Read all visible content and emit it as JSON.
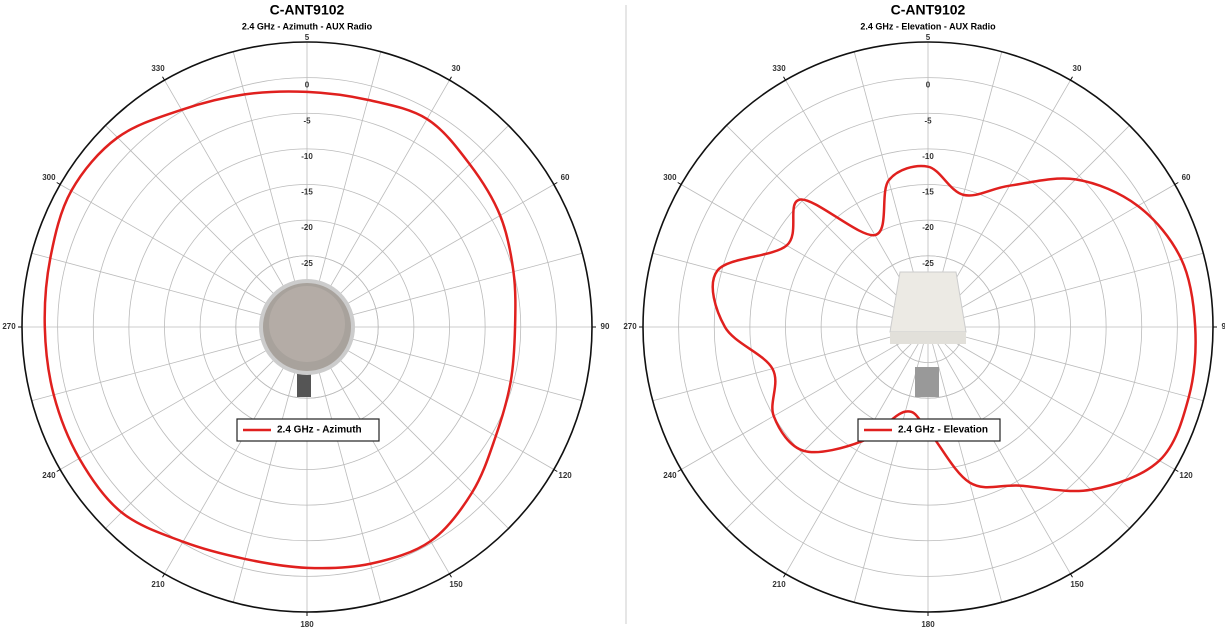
{
  "chart_data": [
    {
      "type": "polar",
      "title": "C-ANT9102",
      "subtitle": "2.4 GHz - Azimuth - AUX Radio",
      "theta": [
        0,
        15,
        30,
        45,
        60,
        75,
        90,
        105,
        120,
        135,
        150,
        165,
        180,
        195,
        210,
        225,
        240,
        255,
        270,
        285,
        300,
        315,
        330,
        345
      ],
      "series": [
        {
          "name": "2.4 GHz - Azimuth",
          "color": "#e0201e",
          "values": [
            -2.0,
            -2.0,
            -1.3,
            -2.7,
            -3.7,
            -5.0,
            -5.8,
            -5.4,
            -4.4,
            -2.2,
            -0.3,
            -0.6,
            -1.2,
            -1.3,
            -0.2,
            1.8,
            1.9,
            1.8,
            1.8,
            2.3,
            3.2,
            2.6,
            0.2,
            -1.2
          ]
        }
      ],
      "rlim": [
        -35,
        5
      ],
      "rticks": [
        5,
        0,
        -5,
        -10,
        -15,
        -20,
        -25
      ],
      "thetaticks": [
        30,
        60,
        90,
        120,
        150,
        180,
        210,
        240,
        270,
        300,
        330
      ],
      "grid": true
    },
    {
      "type": "polar",
      "title": "C-ANT9102",
      "subtitle": "2.4 GHz - Elevation - AUX Radio",
      "theta": [
        0,
        15,
        30,
        45,
        60,
        75,
        90,
        105,
        120,
        135,
        150,
        165,
        180,
        195,
        210,
        225,
        240,
        255,
        270,
        285,
        300,
        315,
        330,
        345
      ],
      "series": [
        {
          "name": "2.4 GHz - Elevation",
          "color": "#e0201e",
          "values": [
            -12.5,
            -15.8,
            -12.1,
            -5.7,
            -1.0,
            1.8,
            2.5,
            2.9,
            2.5,
            -2.7,
            -9.3,
            -12.4,
            -20.5,
            -22.7,
            -16.5,
            -10.4,
            -10.0,
            -12.4,
            -6.5,
            -4.4,
            -12.1,
            -9.7,
            -20.1,
            -13.7
          ]
        }
      ],
      "rlim": [
        -35,
        5
      ],
      "rticks": [
        5,
        0,
        -5,
        -10,
        -15,
        -20,
        -25
      ],
      "thetaticks": [
        30,
        60,
        90,
        120,
        150,
        180,
        210,
        240,
        270,
        300,
        330
      ],
      "grid": true
    }
  ]
}
